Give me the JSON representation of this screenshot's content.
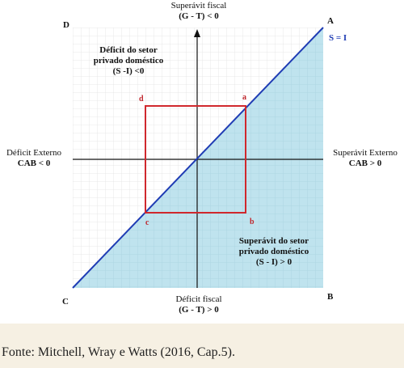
{
  "figure": {
    "top_label": {
      "line1": "Superávit fiscal",
      "line2": "(G - T) < 0"
    },
    "bottom_label": {
      "line1": "Déficit fiscal",
      "line2": "(G - T) > 0"
    },
    "left_label": {
      "line1": "Déficit Externo",
      "line2": "CAB < 0"
    },
    "right_label": {
      "line1": "Superávit Externo",
      "line2": "CAB > 0"
    },
    "upper_region": {
      "line1": "Déficit do setor",
      "line2": "privado doméstico",
      "line3": "(S -I) <0"
    },
    "lower_region": {
      "line1": "Superávit do setor",
      "line2": "privado doméstico",
      "line3": "(S - I) > 0"
    },
    "line_label": "S = I",
    "corners": {
      "top_left": "D",
      "top_right": "A",
      "bottom_left": "C",
      "bottom_right": "B"
    },
    "points": {
      "a": "a",
      "b": "b",
      "c": "c",
      "d": "d"
    },
    "colors": {
      "shaded": "#bfe3ee",
      "grid": "#e6e6e6",
      "diagonal": "#1f3cb4",
      "box": "#d0282d"
    }
  },
  "caption": "Fonte: Mitchell, Wray e Watts (2016, Cap.5)."
}
